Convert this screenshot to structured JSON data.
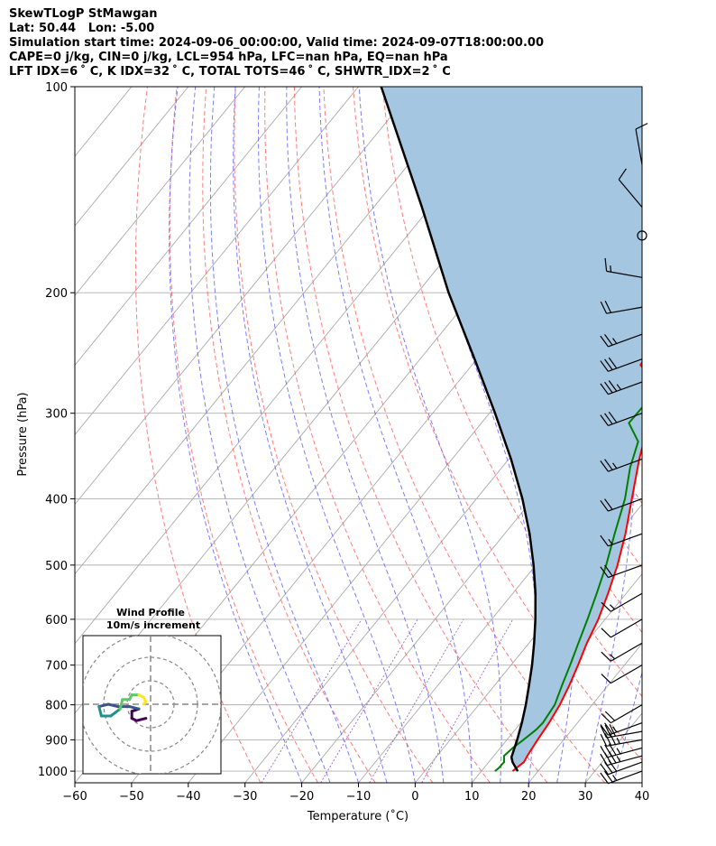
{
  "header": {
    "line1": "SkewTLogP StMawgan",
    "line2": "Lat: 50.44   Lon: -5.00",
    "line3": "Simulation start time: 2024-09-06_00:00:00, Valid time: 2024-09-07T18:00:00.00",
    "line4": "CAPE=0 j/kg, CIN=0 j/kg, LCL=954 hPa, LFC=nan hPa, EQ=nan hPa",
    "line5": "LFT IDX=6 ˚ C, K IDX=32 ˚ C, TOTAL TOTS=46 ˚ C, SHWTR_IDX=2 ˚ C"
  },
  "chart_data": {
    "type": "skew-t",
    "xlabel": "Temperature (˚C)",
    "ylabel": "Pressure (hPa)",
    "xlim": [
      -60,
      40
    ],
    "ylim": [
      1040,
      100
    ],
    "y_scale": "log",
    "grid": true,
    "x_ticks": [
      "−60",
      "−50",
      "−40",
      "−30",
      "−20",
      "−10",
      "0",
      "10",
      "20",
      "30",
      "40"
    ],
    "y_ticks": [
      {
        "p": 100,
        "label": "100"
      },
      {
        "p": 200,
        "label": "200"
      },
      {
        "p": 300,
        "label": "300"
      },
      {
        "p": 400,
        "label": "400"
      },
      {
        "p": 500,
        "label": "500"
      },
      {
        "p": 600,
        "label": "600"
      },
      {
        "p": 700,
        "label": "700"
      },
      {
        "p": 800,
        "label": "800"
      },
      {
        "p": 900,
        "label": "900"
      },
      {
        "p": 1000,
        "label": "1000"
      }
    ],
    "colors": {
      "temperature": "#ff0000",
      "dewpoint": "#008000",
      "parcel": "#000000",
      "fill": "#a4c6e0",
      "dry_adiabat": "#ff6666",
      "moist_adiabat": "#6666ff",
      "mixing_ratio": "#9966cc",
      "isotherm": "#aaaaaa"
    },
    "series": [
      {
        "key": "temperature",
        "points": [
          [
            1000,
            15.5
          ],
          [
            990,
            15.7
          ],
          [
            970,
            16.2
          ],
          [
            950,
            15.9
          ],
          [
            900,
            15.4
          ],
          [
            850,
            15.0
          ],
          [
            800,
            14.3
          ],
          [
            750,
            13.2
          ],
          [
            700,
            11.8
          ],
          [
            650,
            10.2
          ],
          [
            600,
            8.8
          ],
          [
            550,
            6.8
          ],
          [
            500,
            4.4
          ],
          [
            450,
            1.3
          ],
          [
            400,
            -2.6
          ],
          [
            350,
            -7.0
          ],
          [
            300,
            -11.5
          ],
          [
            270,
            -15.4
          ],
          [
            255,
            -20.3
          ],
          [
            240,
            -20.9
          ],
          [
            220,
            -21.2
          ],
          [
            200,
            -21.2
          ],
          [
            180,
            -23.4
          ],
          [
            160,
            -25.5
          ],
          [
            140,
            -28.4
          ],
          [
            125,
            -29.2
          ],
          [
            110,
            -29.1
          ],
          [
            100,
            -27.8
          ]
        ]
      },
      {
        "key": "dewpoint",
        "points": [
          [
            1000,
            12.4
          ],
          [
            990,
            12.6
          ],
          [
            970,
            12.7
          ],
          [
            950,
            11.8
          ],
          [
            925,
            12.2
          ],
          [
            900,
            12.9
          ],
          [
            870,
            13.7
          ],
          [
            850,
            13.9
          ],
          [
            800,
            13.4
          ],
          [
            750,
            11.9
          ],
          [
            700,
            10.4
          ],
          [
            650,
            8.7
          ],
          [
            600,
            6.9
          ],
          [
            550,
            4.8
          ],
          [
            500,
            2.4
          ],
          [
            450,
            -0.6
          ],
          [
            400,
            -3.8
          ],
          [
            360,
            -7.4
          ],
          [
            330,
            -9.7
          ],
          [
            310,
            -14.0
          ],
          [
            280,
            -13.8
          ],
          [
            260,
            -15.3
          ],
          [
            240,
            -15.1
          ],
          [
            225,
            -19.6
          ],
          [
            205,
            -27.6
          ],
          [
            190,
            -28.0
          ],
          [
            175,
            -26.7
          ],
          [
            160,
            -27.4
          ],
          [
            145,
            -28.6
          ],
          [
            130,
            -31.1
          ],
          [
            115,
            -35.7
          ],
          [
            100,
            -40.4
          ]
        ]
      },
      {
        "key": "parcel",
        "points": [
          [
            1000,
            16.4
          ],
          [
            970,
            14.2
          ],
          [
            954,
            13.3
          ],
          [
            900,
            11.8
          ],
          [
            850,
            10.2
          ],
          [
            800,
            8.3
          ],
          [
            750,
            6.1
          ],
          [
            700,
            3.7
          ],
          [
            650,
            0.9
          ],
          [
            600,
            -2.3
          ],
          [
            550,
            -6.0
          ],
          [
            500,
            -10.4
          ],
          [
            450,
            -15.6
          ],
          [
            400,
            -21.9
          ],
          [
            350,
            -29.6
          ],
          [
            300,
            -39.0
          ],
          [
            250,
            -50.4
          ],
          [
            200,
            -64.5
          ],
          [
            150,
            -81.5
          ],
          [
            100,
            -106.0
          ]
        ]
      }
    ],
    "wind_barbs": [
      {
        "p": 1000,
        "speed_kt": 25,
        "dir": 250
      },
      {
        "p": 970,
        "speed_kt": 30,
        "dir": 250
      },
      {
        "p": 950,
        "speed_kt": 35,
        "dir": 255
      },
      {
        "p": 925,
        "speed_kt": 35,
        "dir": 255
      },
      {
        "p": 900,
        "speed_kt": 35,
        "dir": 260
      },
      {
        "p": 875,
        "speed_kt": 30,
        "dir": 260
      },
      {
        "p": 850,
        "speed_kt": 25,
        "dir": 250
      },
      {
        "p": 800,
        "speed_kt": 20,
        "dir": 240
      },
      {
        "p": 700,
        "speed_kt": 10,
        "dir": 240
      },
      {
        "p": 650,
        "speed_kt": 15,
        "dir": 240
      },
      {
        "p": 600,
        "speed_kt": 10,
        "dir": 240
      },
      {
        "p": 550,
        "speed_kt": 15,
        "dir": 240
      },
      {
        "p": 500,
        "speed_kt": 20,
        "dir": 250
      },
      {
        "p": 450,
        "speed_kt": 15,
        "dir": 250
      },
      {
        "p": 400,
        "speed_kt": 20,
        "dir": 250
      },
      {
        "p": 350,
        "speed_kt": 25,
        "dir": 250
      },
      {
        "p": 300,
        "speed_kt": 30,
        "dir": 250
      },
      {
        "p": 270,
        "speed_kt": 35,
        "dir": 250
      },
      {
        "p": 250,
        "speed_kt": 30,
        "dir": 250
      },
      {
        "p": 230,
        "speed_kt": 25,
        "dir": 250
      },
      {
        "p": 210,
        "speed_kt": 20,
        "dir": 260
      },
      {
        "p": 190,
        "speed_kt": 15,
        "dir": 280
      },
      {
        "p": 165,
        "speed_kt": 0,
        "dir": 0
      },
      {
        "p": 150,
        "speed_kt": 10,
        "dir": 320
      },
      {
        "p": 130,
        "speed_kt": 10,
        "dir": 350
      }
    ],
    "hodograph": {
      "title": "Wind Profile",
      "subtitle": "10m/s increment",
      "rings_ms": [
        10,
        20,
        30
      ],
      "cmap": [
        "#440154",
        "#3b528b",
        "#21918c",
        "#5ec962",
        "#fde725"
      ],
      "points": [
        [
          -2,
          -6
        ],
        [
          -6,
          -7
        ],
        [
          -8,
          -6
        ],
        [
          -8,
          -3
        ],
        [
          -5,
          -2
        ],
        [
          -9,
          -1
        ],
        [
          -14,
          -1
        ],
        [
          -18,
          0
        ],
        [
          -22,
          -1
        ],
        [
          -21,
          -5
        ],
        [
          -17,
          -5
        ],
        [
          -13,
          -2
        ],
        [
          -12,
          2
        ],
        [
          -9,
          2
        ],
        [
          -8,
          4
        ],
        [
          -5,
          4
        ],
        [
          -3,
          3
        ],
        [
          -2,
          1
        ],
        [
          -3,
          0
        ]
      ]
    }
  }
}
